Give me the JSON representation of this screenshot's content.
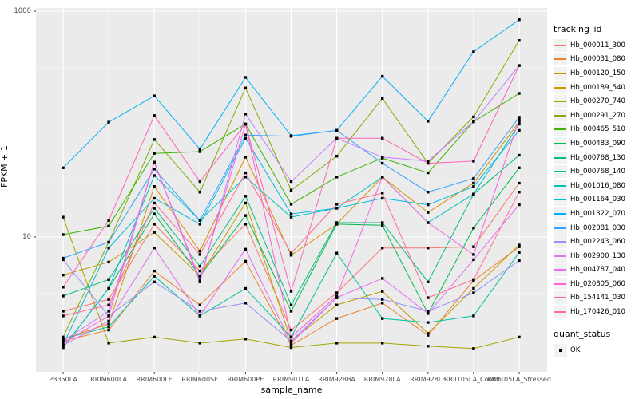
{
  "chart": {
    "ylabel": "FPKM + 1",
    "xlabel": "sample_name",
    "legend_title": "tracking_id",
    "quant_legend_title": "quant_status",
    "quant_legend_item": "OK",
    "panel_background": "#EBEBEB",
    "gridline_color": "#FFFFFF",
    "tick_text_color": "#4D4D4D",
    "marker_color": "#000000"
  },
  "chart_data": {
    "type": "line",
    "title": "",
    "xlabel": "sample_name",
    "ylabel": "FPKM + 1",
    "yscale": "log10",
    "ylim": [
      1,
      1000
    ],
    "y_tick_labels": [
      "1000",
      "10"
    ],
    "y_tick_values": [
      1000,
      10
    ],
    "grid": true,
    "legend_position": "right",
    "point_marker": {
      "shape": "square",
      "color": "#000000",
      "legend_title": "quant_status",
      "label": "OK"
    },
    "categories": [
      "PB350LA",
      "RRIM600LA",
      "RRIM600LE",
      "RRIM600SE",
      "RRIM600PE",
      "RRIM901LA",
      "RRIM928BA",
      "RRIM928LA",
      "RRIM928LE",
      "RRII105LA_Control",
      "RRII105LA_Stressed"
    ],
    "series": [
      {
        "name": "Hb_000011_300",
        "color": "#F8766D",
        "values": [
          2.2,
          2.8,
          13,
          5,
          13,
          1.5,
          3.2,
          8,
          8,
          8.2,
          30
        ]
      },
      {
        "name": "Hb_000031_080",
        "color": "#EA8331",
        "values": [
          1.2,
          1.5,
          5,
          2.5,
          6.1,
          1.1,
          1.9,
          2.6,
          1.35,
          4.1,
          8.2
        ]
      },
      {
        "name": "Hb_000120_150",
        "color": "#D89000",
        "values": [
          1.25,
          1.7,
          28,
          7.5,
          51,
          6.9,
          13,
          34,
          16.5,
          30,
          105
        ]
      },
      {
        "name": "Hb_000189_540",
        "color": "#C09B00",
        "values": [
          4.6,
          6,
          11,
          4.5,
          20,
          1.2,
          2.5,
          3.3,
          1.4,
          3.5,
          8.5
        ]
      },
      {
        "name": "Hb_000270_740",
        "color": "#A3A500",
        "values": [
          15,
          1.15,
          1.3,
          1.15,
          1.25,
          1.05,
          1.15,
          1.15,
          1.08,
          1.03,
          1.3
        ]
      },
      {
        "name": "Hb_000291_270",
        "color": "#7CAE00",
        "values": [
          1.3,
          9,
          73,
          25,
          209,
          26,
          52,
          169,
          45,
          116,
          550
        ]
      },
      {
        "name": "Hb_000465_510",
        "color": "#39B600",
        "values": [
          10.5,
          12.5,
          55,
          57,
          100,
          19.5,
          34,
          50,
          37,
          105,
          187
        ]
      },
      {
        "name": "Hb_000483_090",
        "color": "#00BB4E",
        "values": [
          1.05,
          3.5,
          16,
          4.5,
          15.5,
          2.2,
          13,
          12.7,
          2.1,
          12,
          41
        ]
      },
      {
        "name": "Hb_000768_130",
        "color": "#00BF7D",
        "values": [
          3,
          4.2,
          18,
          5.5,
          23,
          2.5,
          13.4,
          13.4,
          4,
          24,
          53
        ]
      },
      {
        "name": "Hb_000768_140",
        "color": "#00C1A3",
        "values": [
          1.25,
          1.6,
          4.5,
          2,
          3.5,
          1.3,
          7.2,
          1.9,
          1.75,
          2,
          7.3
        ]
      },
      {
        "name": "Hb_001016_080",
        "color": "#00BFC4",
        "values": [
          1.05,
          3.5,
          35,
          14,
          34,
          15,
          18,
          34,
          13.4,
          24,
          100
        ]
      },
      {
        "name": "Hb_001164_030",
        "color": "#00BAE0",
        "values": [
          1.1,
          8,
          22,
          13,
          75,
          16,
          18,
          22,
          19.3,
          28,
          88
        ]
      },
      {
        "name": "Hb_001322_070",
        "color": "#00B0F6",
        "values": [
          41,
          104,
          178,
          60,
          259,
          79,
          88,
          265,
          106,
          437,
          840
        ]
      },
      {
        "name": "Hb_002081_030",
        "color": "#35A2FF",
        "values": [
          6.5,
          9,
          40,
          14,
          80,
          78,
          88,
          45,
          25,
          33,
          115
        ]
      },
      {
        "name": "Hb_002243_060",
        "color": "#9590FF",
        "values": [
          6.3,
          2,
          4,
          2.2,
          2.6,
          1.2,
          2.9,
          2.8,
          2.2,
          3.2,
          6.2
        ]
      },
      {
        "name": "Hb_002900_130",
        "color": "#C77CFF",
        "values": [
          1.2,
          2.2,
          46,
          4,
          123,
          31,
          75,
          51,
          47,
          105,
          330
        ]
      },
      {
        "name": "Hb_004787_040",
        "color": "#E76BF3",
        "values": [
          1.1,
          1.8,
          8,
          2,
          7.8,
          1.15,
          2.9,
          4.3,
          2.1,
          6.3,
          19.3
        ]
      },
      {
        "name": "Hb_020805_060",
        "color": "#FA62DB",
        "values": [
          1.15,
          2,
          46,
          4.2,
          100,
          1.3,
          3,
          34,
          13.4,
          7,
          110
        ]
      },
      {
        "name": "Hb_154141_030",
        "color": "#FF62BC",
        "values": [
          3.6,
          14,
          119,
          31,
          100,
          3.3,
          75,
          75,
          45,
          47,
          330
        ]
      },
      {
        "name": "Hb_170426_010",
        "color": "#FF6A98",
        "values": [
          2,
          2.5,
          20,
          7,
          37,
          7.2,
          19.5,
          24.5,
          2.9,
          4.2,
          25
        ]
      }
    ]
  }
}
